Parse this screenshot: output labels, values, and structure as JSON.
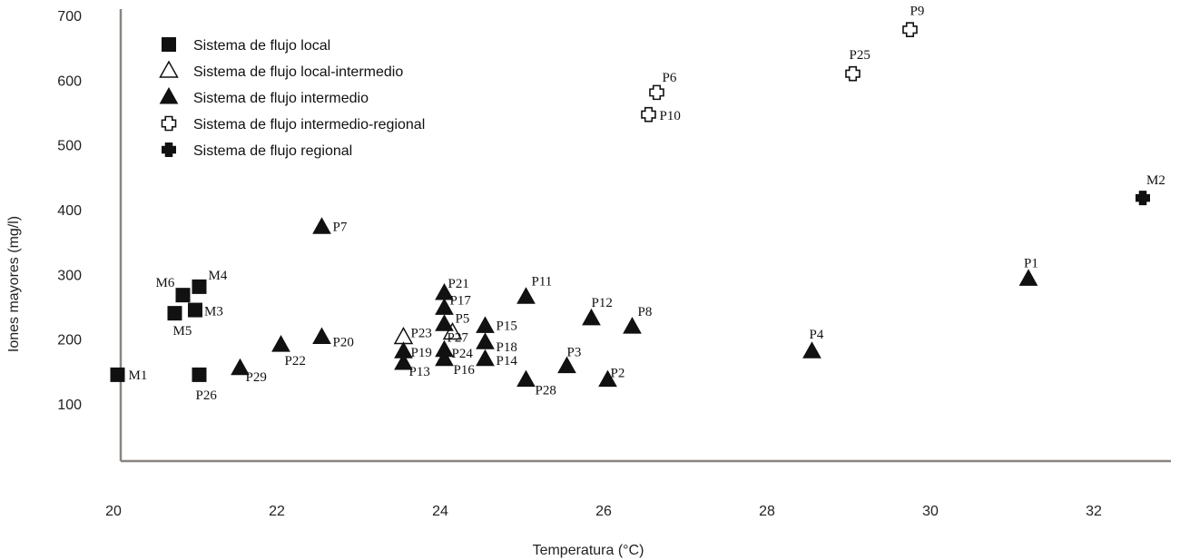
{
  "chart_data": {
    "type": "scatter",
    "xlabel": "Temperatura (°C)",
    "ylabel": "Iones mayores (mg/l)",
    "xlim": [
      20,
      33.2
    ],
    "ylim": [
      20,
      720
    ],
    "x_ticks": [
      "20",
      "22",
      "24",
      "26",
      "28",
      "30",
      "32"
    ],
    "y_ticks": [
      "100",
      "200",
      "300",
      "400",
      "500",
      "600",
      "700"
    ],
    "grid": false,
    "legend_position": "top-left",
    "series": [
      {
        "name": "Sistema de flujo local",
        "marker": "square-filled",
        "points": [
          {
            "label": "M1",
            "x": 20.05,
            "y": 145
          },
          {
            "label": "M6",
            "x": 20.85,
            "y": 268
          },
          {
            "label": "M4",
            "x": 21.05,
            "y": 281
          },
          {
            "label": "M3",
            "x": 21.0,
            "y": 245
          },
          {
            "label": "M5",
            "x": 20.75,
            "y": 240
          },
          {
            "label": "P26",
            "x": 21.05,
            "y": 145
          }
        ]
      },
      {
        "name": "Sistema de flujo local-intermedio",
        "marker": "triangle-open",
        "points": [
          {
            "label": "P23",
            "x": 23.55,
            "y": 203
          },
          {
            "label": "P27",
            "x": 24.15,
            "y": 210
          }
        ]
      },
      {
        "name": "Sistema de flujo intermedio",
        "marker": "triangle-filled",
        "points": [
          {
            "label": "P7",
            "x": 22.55,
            "y": 373
          },
          {
            "label": "P29",
            "x": 21.55,
            "y": 155
          },
          {
            "label": "P22",
            "x": 22.05,
            "y": 191
          },
          {
            "label": "P20",
            "x": 22.55,
            "y": 203
          },
          {
            "label": "P21",
            "x": 24.05,
            "y": 271
          },
          {
            "label": "P17",
            "x": 24.05,
            "y": 248
          },
          {
            "label": "P5",
            "x": 24.05,
            "y": 223
          },
          {
            "label": "P19",
            "x": 23.55,
            "y": 181
          },
          {
            "label": "P13",
            "x": 23.55,
            "y": 163
          },
          {
            "label": "P24",
            "x": 24.05,
            "y": 183
          },
          {
            "label": "P16",
            "x": 24.05,
            "y": 169
          },
          {
            "label": "P15",
            "x": 24.55,
            "y": 220
          },
          {
            "label": "P18",
            "x": 24.55,
            "y": 195
          },
          {
            "label": "P14",
            "x": 24.55,
            "y": 169
          },
          {
            "label": "P11",
            "x": 25.05,
            "y": 265
          },
          {
            "label": "P28",
            "x": 25.05,
            "y": 137
          },
          {
            "label": "P3",
            "x": 25.55,
            "y": 158
          },
          {
            "label": "P12",
            "x": 25.85,
            "y": 232
          },
          {
            "label": "P2",
            "x": 26.05,
            "y": 137
          },
          {
            "label": "P8",
            "x": 26.35,
            "y": 219
          },
          {
            "label": "P4",
            "x": 28.55,
            "y": 181
          },
          {
            "label": "P1",
            "x": 31.2,
            "y": 293
          }
        ]
      },
      {
        "name": "Sistema de flujo intermedio-regional",
        "marker": "cross-open",
        "points": [
          {
            "label": "P6",
            "x": 26.65,
            "y": 581
          },
          {
            "label": "P10",
            "x": 26.55,
            "y": 547
          },
          {
            "label": "P25",
            "x": 29.05,
            "y": 610
          },
          {
            "label": "P9",
            "x": 29.75,
            "y": 678
          }
        ]
      },
      {
        "name": "Sistema de flujo regional",
        "marker": "cross-filled",
        "points": [
          {
            "label": "M2",
            "x": 32.6,
            "y": 418
          }
        ]
      }
    ]
  }
}
